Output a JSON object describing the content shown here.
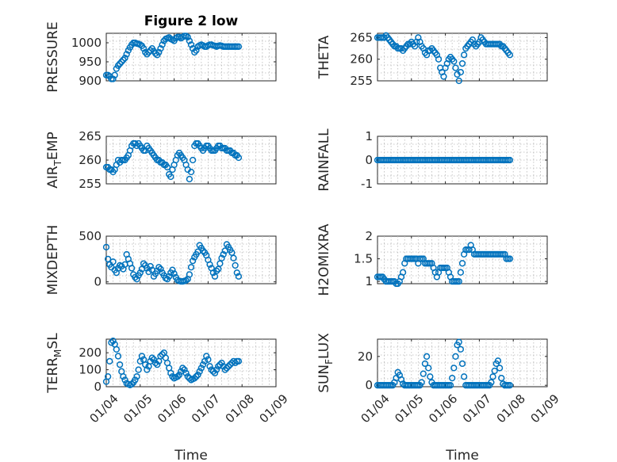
{
  "figure": {
    "title": "Figure 2 low",
    "marker_color": "#0072bd"
  },
  "chart_data": [
    {
      "id": "pressure",
      "type": "scatter",
      "title": "Figure 2 low",
      "ylabel": "PRESSURE",
      "xlabel": "",
      "ylim": [
        900,
        1025
      ],
      "yticks": [
        900,
        950,
        1000
      ],
      "xlim": [
        0,
        5
      ],
      "x": [
        0.0,
        0.05,
        0.1,
        0.15,
        0.2,
        0.25,
        0.3,
        0.35,
        0.4,
        0.45,
        0.5,
        0.55,
        0.6,
        0.65,
        0.7,
        0.75,
        0.8,
        0.85,
        0.9,
        0.95,
        1.0,
        1.05,
        1.1,
        1.15,
        1.2,
        1.25,
        1.3,
        1.35,
        1.4,
        1.45,
        1.5,
        1.55,
        1.6,
        1.65,
        1.7,
        1.75,
        1.8,
        1.85,
        1.9,
        1.95,
        2.0,
        2.05,
        2.1,
        2.15,
        2.2,
        2.25,
        2.3,
        2.35,
        2.4,
        2.45,
        2.5,
        2.55,
        2.6,
        2.65,
        2.7,
        2.75,
        2.8,
        2.85,
        2.9,
        2.95,
        3.0,
        3.05,
        3.1,
        3.15,
        3.2,
        3.25,
        3.3,
        3.35,
        3.4,
        3.45,
        3.5,
        3.55,
        3.6,
        3.65,
        3.7,
        3.75,
        3.8,
        3.85,
        3.9
      ],
      "y": [
        915,
        915,
        912,
        905,
        905,
        915,
        932,
        940,
        945,
        950,
        955,
        960,
        970,
        980,
        988,
        995,
        1000,
        1000,
        998,
        997,
        995,
        992,
        985,
        975,
        970,
        975,
        980,
        985,
        978,
        972,
        968,
        975,
        985,
        995,
        1005,
        1010,
        1012,
        1014,
        1010,
        1008,
        1005,
        1012,
        1015,
        1015,
        1012,
        1015,
        1018,
        1018,
        1015,
        1005,
        995,
        985,
        975,
        980,
        990,
        993,
        995,
        993,
        990,
        990,
        993,
        995,
        995,
        993,
        992,
        990,
        992,
        993,
        992,
        990,
        990,
        990,
        990,
        990,
        990,
        990,
        990,
        990,
        990
      ]
    },
    {
      "id": "theta",
      "type": "scatter",
      "ylabel": "THETA",
      "xlabel": "",
      "ylim": [
        255,
        266
      ],
      "yticks": [
        255,
        260,
        265
      ],
      "xlim": [
        0,
        5
      ],
      "x": [
        0.0,
        0.05,
        0.1,
        0.15,
        0.2,
        0.25,
        0.3,
        0.35,
        0.4,
        0.45,
        0.5,
        0.55,
        0.6,
        0.65,
        0.7,
        0.75,
        0.8,
        0.85,
        0.9,
        0.95,
        1.0,
        1.05,
        1.1,
        1.15,
        1.2,
        1.25,
        1.3,
        1.35,
        1.4,
        1.45,
        1.5,
        1.55,
        1.6,
        1.65,
        1.7,
        1.75,
        1.8,
        1.85,
        1.9,
        1.95,
        2.0,
        2.05,
        2.1,
        2.15,
        2.2,
        2.25,
        2.3,
        2.35,
        2.4,
        2.45,
        2.5,
        2.55,
        2.6,
        2.65,
        2.7,
        2.75,
        2.8,
        2.85,
        2.9,
        2.95,
        3.0,
        3.05,
        3.1,
        3.15,
        3.2,
        3.25,
        3.3,
        3.35,
        3.4,
        3.45,
        3.5,
        3.55,
        3.6,
        3.65,
        3.7,
        3.75,
        3.8,
        3.85,
        3.9
      ],
      "y": [
        265,
        265,
        265,
        265,
        265,
        265.5,
        265,
        264.5,
        264,
        263.5,
        263,
        263,
        262.5,
        262.5,
        262.5,
        262,
        262.5,
        263,
        263.5,
        263.5,
        264,
        263.5,
        263,
        264,
        265,
        264,
        263,
        262.5,
        261.5,
        261,
        262,
        262,
        262.5,
        262,
        261.5,
        261,
        260,
        258,
        257,
        256,
        258,
        259,
        260,
        260.5,
        260,
        259.5,
        258,
        256.5,
        255,
        257,
        259,
        261,
        262.5,
        263,
        263.5,
        264,
        264.5,
        263.5,
        263,
        263.5,
        264,
        265,
        264.5,
        264,
        263.5,
        263.5,
        263.5,
        263.5,
        263.5,
        263.5,
        263.5,
        263.5,
        263.5,
        263,
        263,
        262.5,
        262,
        261.5,
        261
      ]
    },
    {
      "id": "airtemp",
      "type": "scatter",
      "ylabel_parts": [
        "AIR",
        "T",
        "EMP"
      ],
      "xlabel": "",
      "ylim": [
        255,
        265
      ],
      "yticks": [
        255,
        260,
        265
      ],
      "xlim": [
        0,
        5
      ],
      "x": [
        0.0,
        0.05,
        0.1,
        0.15,
        0.2,
        0.25,
        0.3,
        0.35,
        0.4,
        0.45,
        0.5,
        0.55,
        0.6,
        0.65,
        0.7,
        0.75,
        0.8,
        0.85,
        0.9,
        0.95,
        1.0,
        1.05,
        1.1,
        1.15,
        1.2,
        1.25,
        1.3,
        1.35,
        1.4,
        1.45,
        1.5,
        1.55,
        1.6,
        1.65,
        1.7,
        1.75,
        1.8,
        1.85,
        1.9,
        1.95,
        2.0,
        2.05,
        2.1,
        2.15,
        2.2,
        2.25,
        2.3,
        2.35,
        2.4,
        2.45,
        2.5,
        2.55,
        2.6,
        2.65,
        2.7,
        2.75,
        2.8,
        2.85,
        2.9,
        2.95,
        3.0,
        3.05,
        3.1,
        3.15,
        3.2,
        3.25,
        3.3,
        3.35,
        3.4,
        3.45,
        3.5,
        3.55,
        3.6,
        3.65,
        3.7,
        3.75,
        3.8,
        3.85,
        3.9
      ],
      "y": [
        258.5,
        258.5,
        258,
        258,
        257.5,
        258,
        259,
        260,
        259.5,
        260,
        260,
        260,
        260.5,
        261,
        262,
        263,
        263.5,
        263.5,
        263,
        263.5,
        263,
        262.5,
        262,
        262,
        263,
        262.5,
        262,
        261.5,
        261,
        260.5,
        260,
        260,
        259.5,
        259.5,
        259,
        259,
        258.5,
        257,
        256.5,
        258,
        259,
        260,
        261,
        261.5,
        261,
        260.5,
        260,
        259,
        258,
        256,
        257.5,
        260,
        263,
        263.5,
        263.5,
        263,
        262.5,
        262,
        262.5,
        263,
        263,
        262.5,
        262,
        262,
        262,
        262.5,
        263,
        263,
        262.5,
        262.5,
        262.5,
        262,
        262,
        262,
        261.5,
        261.5,
        261,
        261,
        260.5
      ]
    },
    {
      "id": "rainfall",
      "type": "scatter",
      "ylabel": "RAINFALL",
      "xlabel": "",
      "ylim": [
        -1,
        1
      ],
      "yticks": [
        -1,
        0,
        1
      ],
      "xlim": [
        0,
        5
      ],
      "x": [
        0.0,
        0.05,
        0.1,
        0.15,
        0.2,
        0.25,
        0.3,
        0.35,
        0.4,
        0.45,
        0.5,
        0.55,
        0.6,
        0.65,
        0.7,
        0.75,
        0.8,
        0.85,
        0.9,
        0.95,
        1.0,
        1.05,
        1.1,
        1.15,
        1.2,
        1.25,
        1.3,
        1.35,
        1.4,
        1.45,
        1.5,
        1.55,
        1.6,
        1.65,
        1.7,
        1.75,
        1.8,
        1.85,
        1.9,
        1.95,
        2.0,
        2.05,
        2.1,
        2.15,
        2.2,
        2.25,
        2.3,
        2.35,
        2.4,
        2.45,
        2.5,
        2.55,
        2.6,
        2.65,
        2.7,
        2.75,
        2.8,
        2.85,
        2.9,
        2.95,
        3.0,
        3.05,
        3.1,
        3.15,
        3.2,
        3.25,
        3.3,
        3.35,
        3.4,
        3.45,
        3.5,
        3.55,
        3.6,
        3.65,
        3.7,
        3.75,
        3.8,
        3.85,
        3.9
      ],
      "y": [
        0,
        0,
        0,
        0,
        0,
        0,
        0,
        0,
        0,
        0,
        0,
        0,
        0,
        0,
        0,
        0,
        0,
        0,
        0,
        0,
        0,
        0,
        0,
        0,
        0,
        0,
        0,
        0,
        0,
        0,
        0,
        0,
        0,
        0,
        0,
        0,
        0,
        0,
        0,
        0,
        0,
        0,
        0,
        0,
        0,
        0,
        0,
        0,
        0,
        0,
        0,
        0,
        0,
        0,
        0,
        0,
        0,
        0,
        0,
        0,
        0,
        0,
        0,
        0,
        0,
        0,
        0,
        0,
        0,
        0,
        0,
        0,
        0,
        0,
        0,
        0,
        0,
        0,
        0
      ]
    },
    {
      "id": "mixdepth",
      "type": "scatter",
      "ylabel": "MIXDEPTH",
      "xlabel": "",
      "ylim": [
        -20,
        500
      ],
      "yticks": [
        0,
        500
      ],
      "xlim": [
        0,
        5
      ],
      "x": [
        0.0,
        0.05,
        0.1,
        0.15,
        0.2,
        0.25,
        0.3,
        0.35,
        0.4,
        0.45,
        0.5,
        0.55,
        0.6,
        0.65,
        0.7,
        0.75,
        0.8,
        0.85,
        0.9,
        0.95,
        1.0,
        1.05,
        1.1,
        1.15,
        1.2,
        1.25,
        1.3,
        1.35,
        1.4,
        1.45,
        1.5,
        1.55,
        1.6,
        1.65,
        1.7,
        1.75,
        1.8,
        1.85,
        1.9,
        1.95,
        2.0,
        2.05,
        2.1,
        2.15,
        2.2,
        2.25,
        2.3,
        2.35,
        2.4,
        2.45,
        2.5,
        2.55,
        2.6,
        2.65,
        2.7,
        2.75,
        2.8,
        2.85,
        2.9,
        2.95,
        3.0,
        3.05,
        3.1,
        3.15,
        3.2,
        3.25,
        3.3,
        3.35,
        3.4,
        3.45,
        3.5,
        3.55,
        3.6,
        3.65,
        3.7,
        3.75,
        3.8,
        3.85,
        3.9
      ],
      "y": [
        380,
        250,
        190,
        160,
        220,
        130,
        100,
        150,
        180,
        170,
        140,
        190,
        300,
        250,
        200,
        150,
        80,
        50,
        30,
        70,
        100,
        140,
        200,
        180,
        150,
        110,
        170,
        130,
        60,
        90,
        120,
        160,
        140,
        100,
        70,
        40,
        30,
        60,
        100,
        130,
        90,
        50,
        20,
        10,
        5,
        5,
        10,
        15,
        30,
        80,
        160,
        230,
        270,
        300,
        330,
        400,
        370,
        340,
        320,
        290,
        240,
        190,
        150,
        100,
        60,
        120,
        140,
        200,
        260,
        300,
        340,
        410,
        380,
        350,
        320,
        260,
        180,
        100,
        60
      ]
    },
    {
      "id": "h2omixra",
      "type": "scatter",
      "ylabel": "H2OMIXRA",
      "xlabel": "",
      "ylim": [
        0.95,
        2
      ],
      "yticks": [
        1,
        1.5,
        2
      ],
      "xlim": [
        0,
        5
      ],
      "x": [
        0.0,
        0.05,
        0.1,
        0.15,
        0.2,
        0.25,
        0.3,
        0.35,
        0.4,
        0.45,
        0.5,
        0.55,
        0.6,
        0.65,
        0.7,
        0.75,
        0.8,
        0.85,
        0.9,
        0.95,
        1.0,
        1.05,
        1.1,
        1.15,
        1.2,
        1.25,
        1.3,
        1.35,
        1.4,
        1.45,
        1.5,
        1.55,
        1.6,
        1.65,
        1.7,
        1.75,
        1.8,
        1.85,
        1.9,
        1.95,
        2.0,
        2.05,
        2.1,
        2.15,
        2.2,
        2.25,
        2.3,
        2.35,
        2.4,
        2.45,
        2.5,
        2.55,
        2.6,
        2.65,
        2.7,
        2.75,
        2.8,
        2.85,
        2.9,
        2.95,
        3.0,
        3.05,
        3.1,
        3.15,
        3.2,
        3.25,
        3.3,
        3.35,
        3.4,
        3.45,
        3.5,
        3.55,
        3.6,
        3.65,
        3.7,
        3.75,
        3.8,
        3.85,
        3.9
      ],
      "y": [
        1.1,
        1.1,
        1.1,
        1.1,
        1.05,
        1.0,
        1.0,
        1.0,
        1.0,
        1.0,
        1.0,
        0.95,
        0.95,
        1.0,
        1.1,
        1.2,
        1.4,
        1.5,
        1.5,
        1.5,
        1.5,
        1.5,
        1.5,
        1.5,
        1.4,
        1.5,
        1.5,
        1.5,
        1.4,
        1.4,
        1.4,
        1.4,
        1.4,
        1.3,
        1.2,
        1.1,
        1.2,
        1.3,
        1.3,
        1.3,
        1.3,
        1.3,
        1.2,
        1.1,
        1.0,
        1.0,
        1.0,
        1.0,
        1.0,
        1.2,
        1.4,
        1.6,
        1.7,
        1.7,
        1.7,
        1.8,
        1.7,
        1.6,
        1.6,
        1.6,
        1.6,
        1.6,
        1.6,
        1.6,
        1.6,
        1.6,
        1.6,
        1.6,
        1.6,
        1.6,
        1.6,
        1.6,
        1.6,
        1.6,
        1.6,
        1.6,
        1.5,
        1.5,
        1.5
      ]
    },
    {
      "id": "terrmsl",
      "type": "scatter",
      "ylabel_parts": [
        "TERR",
        "M",
        "SL"
      ],
      "xlabel": "Time",
      "ylim": [
        0,
        280
      ],
      "yticks": [
        0,
        100,
        200
      ],
      "xlim": [
        0,
        5
      ],
      "x": [
        0.0,
        0.05,
        0.1,
        0.15,
        0.2,
        0.25,
        0.3,
        0.35,
        0.4,
        0.45,
        0.5,
        0.55,
        0.6,
        0.65,
        0.7,
        0.75,
        0.8,
        0.85,
        0.9,
        0.95,
        1.0,
        1.05,
        1.1,
        1.15,
        1.2,
        1.25,
        1.3,
        1.35,
        1.4,
        1.45,
        1.5,
        1.55,
        1.6,
        1.65,
        1.7,
        1.75,
        1.8,
        1.85,
        1.9,
        1.95,
        2.0,
        2.05,
        2.1,
        2.15,
        2.2,
        2.25,
        2.3,
        2.35,
        2.4,
        2.45,
        2.5,
        2.55,
        2.6,
        2.65,
        2.7,
        2.75,
        2.8,
        2.85,
        2.9,
        2.95,
        3.0,
        3.05,
        3.1,
        3.15,
        3.2,
        3.25,
        3.3,
        3.35,
        3.4,
        3.45,
        3.5,
        3.55,
        3.6,
        3.65,
        3.7,
        3.75,
        3.8,
        3.85,
        3.9
      ],
      "y": [
        30,
        60,
        150,
        260,
        270,
        250,
        220,
        180,
        130,
        90,
        60,
        40,
        20,
        15,
        10,
        15,
        25,
        40,
        60,
        100,
        150,
        180,
        160,
        130,
        100,
        120,
        150,
        170,
        160,
        140,
        130,
        150,
        180,
        190,
        200,
        170,
        140,
        110,
        80,
        60,
        50,
        55,
        60,
        70,
        90,
        110,
        100,
        80,
        60,
        50,
        40,
        45,
        50,
        60,
        70,
        90,
        110,
        130,
        150,
        180,
        160,
        120,
        100,
        90,
        80,
        100,
        120,
        130,
        140,
        120,
        100,
        110,
        120,
        130,
        140,
        150,
        140,
        150,
        150
      ]
    },
    {
      "id": "sunflux",
      "type": "scatter",
      "ylabel_parts": [
        "SUN",
        "F",
        "LUX"
      ],
      "xlabel": "Time",
      "ylim": [
        -1,
        32
      ],
      "yticks": [
        0,
        20
      ],
      "xlim": [
        0,
        5
      ],
      "x": [
        0.0,
        0.05,
        0.1,
        0.15,
        0.2,
        0.25,
        0.3,
        0.35,
        0.4,
        0.45,
        0.5,
        0.55,
        0.6,
        0.65,
        0.7,
        0.75,
        0.8,
        0.85,
        0.9,
        0.95,
        1.0,
        1.05,
        1.1,
        1.15,
        1.2,
        1.25,
        1.3,
        1.35,
        1.4,
        1.45,
        1.5,
        1.55,
        1.6,
        1.65,
        1.7,
        1.75,
        1.8,
        1.85,
        1.9,
        1.95,
        2.0,
        2.05,
        2.1,
        2.15,
        2.2,
        2.25,
        2.3,
        2.35,
        2.4,
        2.45,
        2.5,
        2.55,
        2.6,
        2.65,
        2.7,
        2.75,
        2.8,
        2.85,
        2.9,
        2.95,
        3.0,
        3.05,
        3.1,
        3.15,
        3.2,
        3.25,
        3.3,
        3.35,
        3.4,
        3.45,
        3.5,
        3.55,
        3.6,
        3.65,
        3.7,
        3.75,
        3.8,
        3.85,
        3.9
      ],
      "y": [
        0,
        0,
        0,
        0,
        0,
        0,
        0,
        0,
        0,
        0,
        2,
        5,
        9,
        7,
        4,
        1,
        0,
        0,
        0,
        0,
        0,
        0,
        0,
        0,
        0,
        0,
        2,
        8,
        15,
        20,
        12,
        6,
        2,
        0,
        0,
        0,
        0,
        0,
        0,
        0,
        0,
        0,
        0,
        0,
        5,
        12,
        20,
        28,
        30,
        25,
        15,
        6,
        0,
        0,
        0,
        0,
        0,
        0,
        0,
        0,
        0,
        0,
        0,
        0,
        0,
        0,
        0,
        2,
        6,
        10,
        15,
        17,
        12,
        5,
        1,
        0,
        0,
        0,
        0
      ]
    }
  ],
  "x_tick_labels": [
    "01/04",
    "01/05",
    "01/06",
    "01/07",
    "01/08",
    "01/09"
  ]
}
